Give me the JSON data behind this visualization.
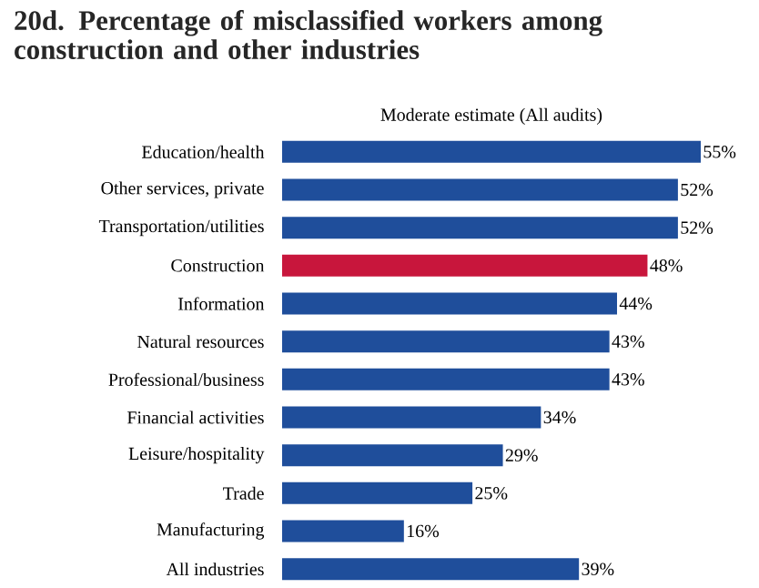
{
  "chart_data": {
    "type": "bar",
    "orientation": "horizontal",
    "title": "20d. Percentage of misclassified workers among construction and other industries",
    "subtitle": "Moderate estimate (All audits)",
    "categories": [
      "Education/health",
      "Other services, private",
      "Transportation/utilities",
      "Construction",
      "Information",
      "Natural resources",
      "Professional/business",
      "Financial activities",
      "Leisure/hospitality",
      "Trade",
      "Manufacturing",
      "All industries"
    ],
    "values": [
      55,
      52,
      52,
      48,
      44,
      43,
      43,
      34,
      29,
      25,
      16,
      39
    ],
    "value_labels": [
      "55%",
      "52%",
      "52%",
      "48%",
      "44%",
      "43%",
      "43%",
      "34%",
      "29%",
      "25%",
      "16%",
      "39%"
    ],
    "colors": [
      "#1f4e9b",
      "#1f4e9b",
      "#1f4e9b",
      "#c8163c",
      "#1f4e9b",
      "#1f4e9b",
      "#1f4e9b",
      "#1f4e9b",
      "#1f4e9b",
      "#1f4e9b",
      "#1f4e9b",
      "#1f4e9b"
    ],
    "xlim": [
      0,
      55
    ]
  }
}
